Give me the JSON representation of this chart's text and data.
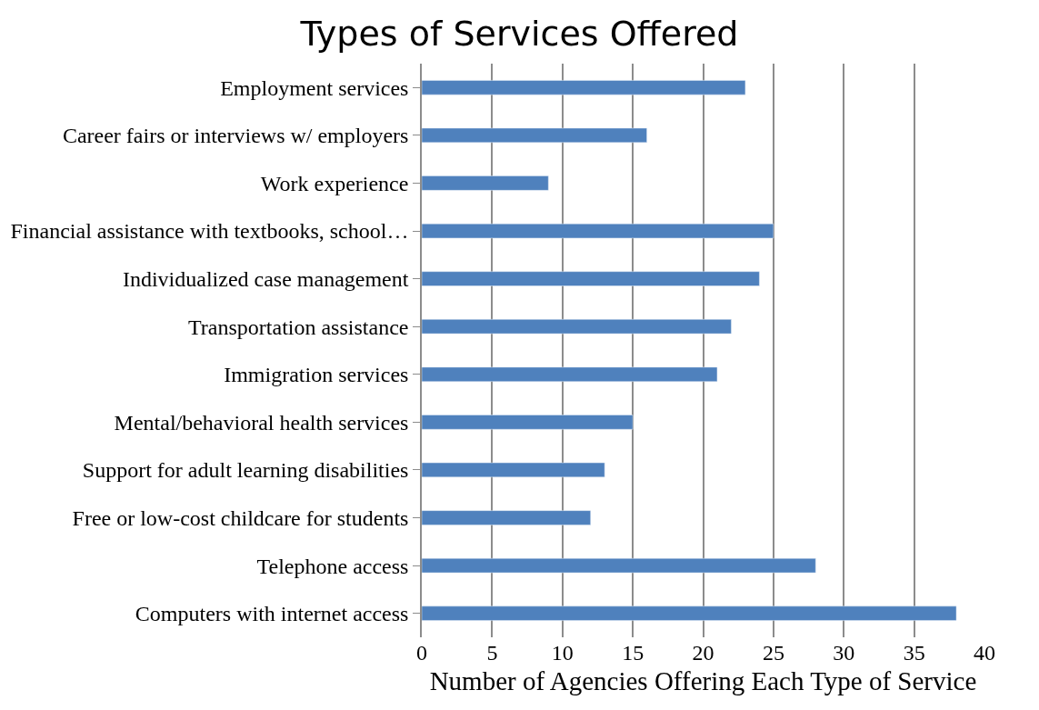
{
  "chart_data": {
    "type": "bar",
    "orientation": "horizontal",
    "title": "Types of Services Offered",
    "xlabel": "Number of Agencies Offering Each Type of Service",
    "categories": [
      "Employment services",
      "Career fairs or interviews w/ employers",
      "Work experience",
      "Financial assistance with textbooks, school…",
      "Individualized case management",
      "Transportation assistance",
      "Immigration services",
      "Mental/behavioral health services",
      "Support for adult learning disabilities",
      "Free or low-cost childcare for students",
      "Telephone access",
      "Computers with internet access"
    ],
    "values": [
      23,
      16,
      9,
      25,
      24,
      22,
      21,
      15,
      13,
      12,
      28,
      38
    ],
    "color": "#4f81bd",
    "xlim": [
      0,
      40
    ],
    "xticks": [
      0,
      5,
      10,
      15,
      20,
      25,
      30,
      35,
      40
    ],
    "grid": "x"
  }
}
